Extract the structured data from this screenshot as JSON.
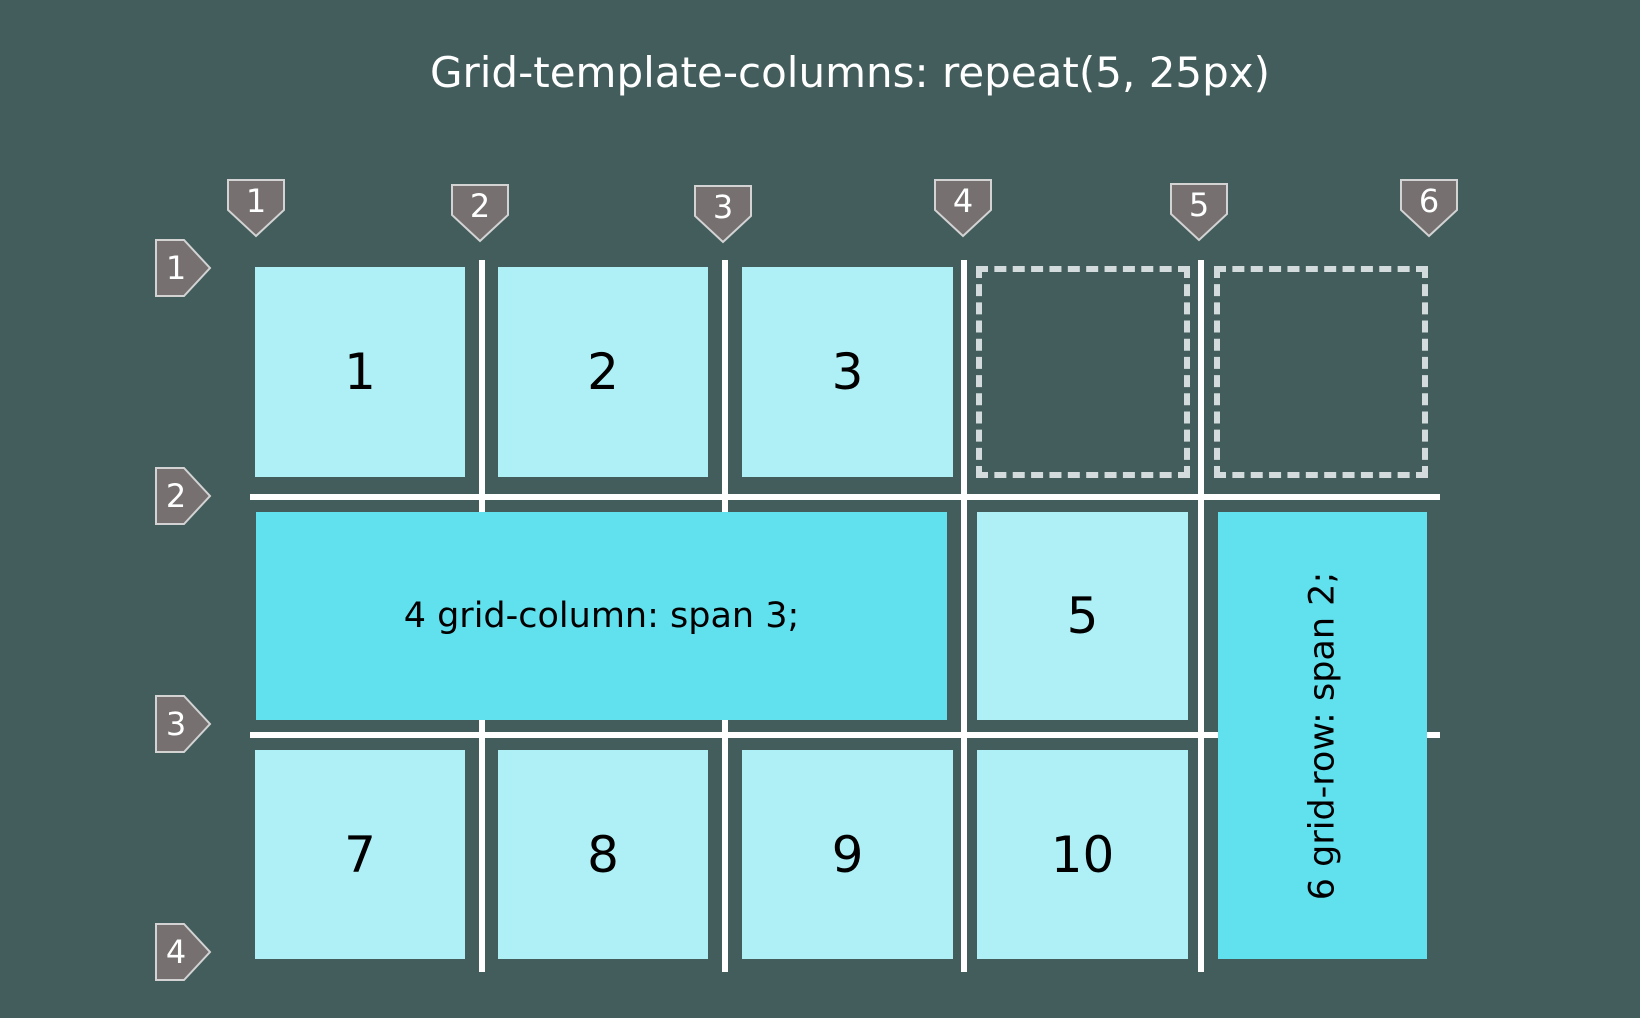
{
  "title": "Grid-template-columns: repeat(5, 25px)",
  "column_markers": [
    "1",
    "2",
    "3",
    "4",
    "5",
    "6"
  ],
  "row_markers": [
    "1",
    "2",
    "3",
    "4"
  ],
  "items": {
    "item1": "1",
    "item2": "2",
    "item3": "3",
    "item4": "4 grid-column: span 3;",
    "item5": "5",
    "item6": "6 grid-row: span 2;",
    "item7": "7",
    "item8": "8",
    "item9": "9",
    "item10": "10"
  },
  "colors": {
    "background": "#425d5c",
    "cell_light": "#aef0f6",
    "cell_span": "#61e0ee",
    "grid_line": "#ffffff",
    "marker": "#767070",
    "dashed_outline": "#d3dbdc"
  }
}
